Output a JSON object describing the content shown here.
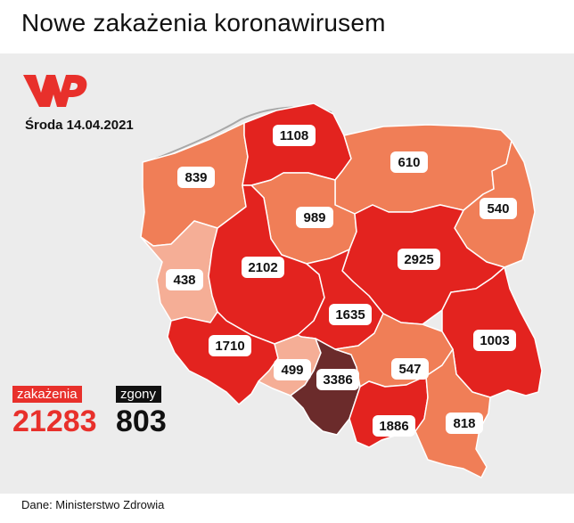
{
  "title": "Nowe zakażenia koronawirusem",
  "logo": {
    "icon": "wp-logo-icon",
    "color": "#e8302b"
  },
  "date": "Środa 14.04.2021",
  "legend": {
    "infections": {
      "label": "zakażenia",
      "value": "21283",
      "color": "#e8302b"
    },
    "deaths": {
      "label": "zgony",
      "value": "803",
      "color": "#111111"
    }
  },
  "regions": [
    {
      "id": "zachodniopomorskie",
      "value": "839",
      "color": "#f07e57"
    },
    {
      "id": "pomorskie",
      "value": "1108",
      "color": "#e3231f"
    },
    {
      "id": "warminsko-mazurskie",
      "value": "610",
      "color": "#f07e57"
    },
    {
      "id": "podlaskie",
      "value": "540",
      "color": "#f07e57"
    },
    {
      "id": "kujawsko-pomorskie",
      "value": "989",
      "color": "#f07e57"
    },
    {
      "id": "lubuskie",
      "value": "438",
      "color": "#f5ae96"
    },
    {
      "id": "wielkopolskie",
      "value": "2102",
      "color": "#e3231f"
    },
    {
      "id": "mazowieckie",
      "value": "2925",
      "color": "#e3231f"
    },
    {
      "id": "lodzkie",
      "value": "1635",
      "color": "#e3231f"
    },
    {
      "id": "lubelskie",
      "value": "1003",
      "color": "#e3231f"
    },
    {
      "id": "dolnoslaskie",
      "value": "1710",
      "color": "#e3231f"
    },
    {
      "id": "opolskie",
      "value": "499",
      "color": "#f5ae96"
    },
    {
      "id": "slaskie",
      "value": "3386",
      "color": "#6b2b2b"
    },
    {
      "id": "swietokrzyskie",
      "value": "547",
      "color": "#f07e57"
    },
    {
      "id": "malopolskie",
      "value": "1886",
      "color": "#e3231f"
    },
    {
      "id": "podkarpackie",
      "value": "818",
      "color": "#f07e57"
    }
  ],
  "source": "Dane: Ministerstwo Zdrowia"
}
